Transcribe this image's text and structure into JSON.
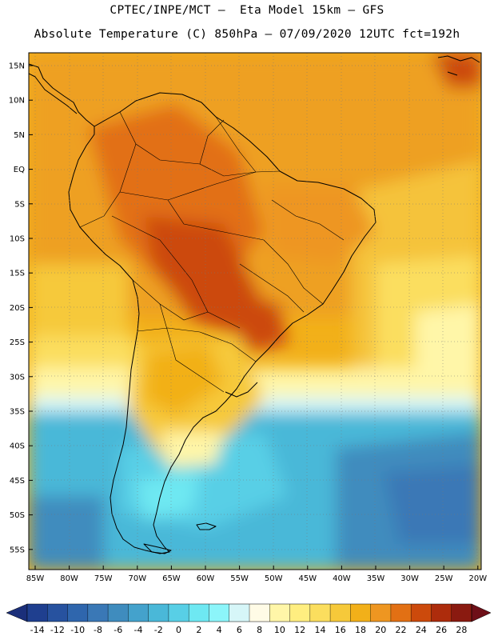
{
  "header": {
    "line1": "CPTEC/INPE/MCT –  Eta Model 15km – GFS",
    "line2": "Absolute Temperature (C) 850hPa – 07/09/2020 12UTC fct=192h"
  },
  "axes": {
    "lat_labels": [
      "15N",
      "10N",
      "5N",
      "EQ",
      "5S",
      "10S",
      "15S",
      "20S",
      "25S",
      "30S",
      "35S",
      "40S",
      "45S",
      "50S",
      "55S"
    ],
    "lon_labels": [
      "85W",
      "80W",
      "75W",
      "70W",
      "65W",
      "60W",
      "55W",
      "50W",
      "45W",
      "40W",
      "35W",
      "30W",
      "25W",
      "20W"
    ]
  },
  "colorbar": {
    "labels": [
      "-14",
      "-12",
      "-10",
      "-8",
      "-6",
      "-4",
      "-2",
      "0",
      "2",
      "4",
      "6",
      "8",
      "10",
      "12",
      "14",
      "16",
      "18",
      "20",
      "22",
      "24",
      "26",
      "28"
    ],
    "colors": [
      "#1f3f8f",
      "#27529f",
      "#2f66ad",
      "#3a78b6",
      "#3f8cbe",
      "#44a2cc",
      "#4ab8d8",
      "#58cfe6",
      "#6ee8f2",
      "#8cf5fa",
      "#d6f6f8",
      "#fffbe6",
      "#fff6a8",
      "#ffee80",
      "#fbde5e",
      "#f6c93a",
      "#f2b019",
      "#ee9621",
      "#e27014",
      "#cc4a0c",
      "#ad2c0c",
      "#8a1a10"
    ],
    "underflow_color": "#1b2f7a",
    "overflow_color": "#6e0f18"
  }
}
